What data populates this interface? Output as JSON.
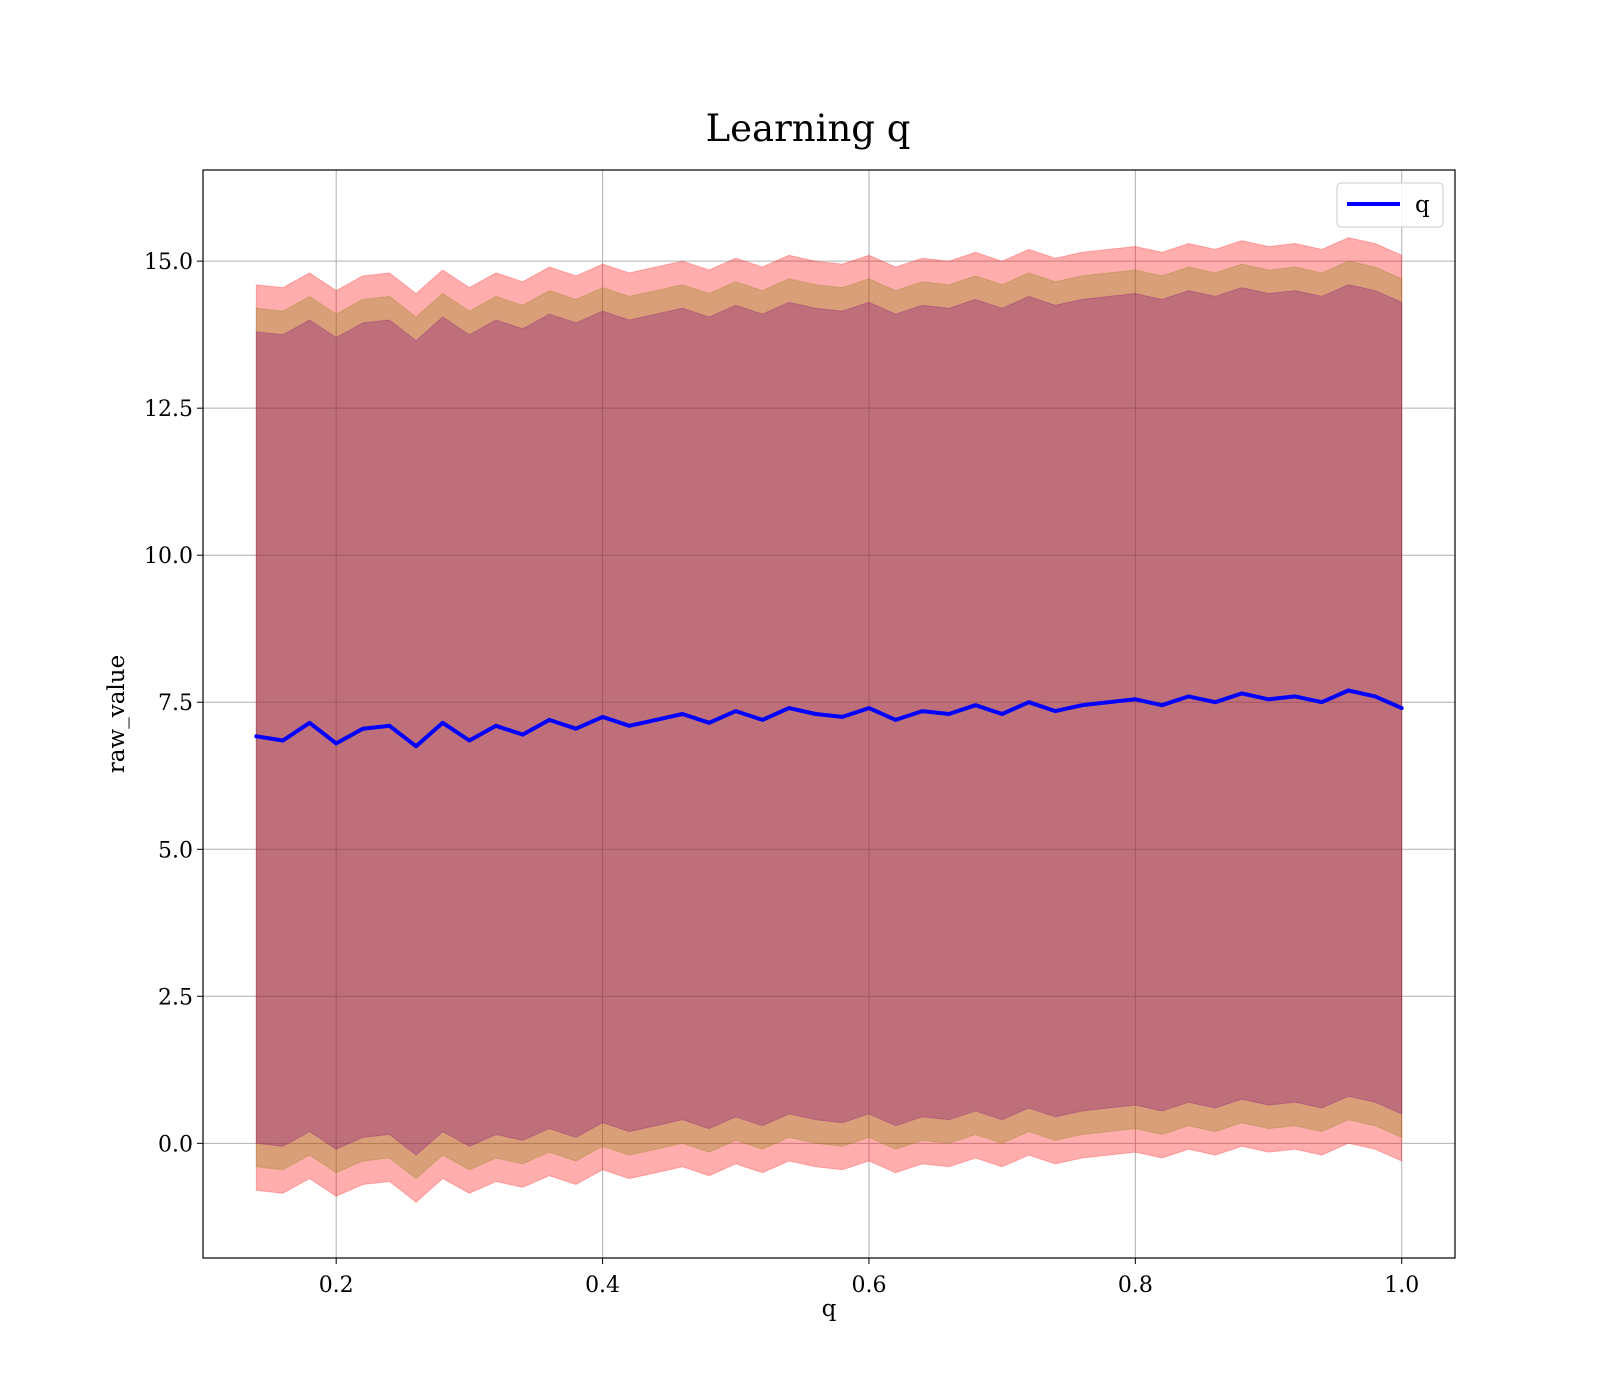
{
  "chart_data": {
    "type": "line",
    "title": "Learning q",
    "xlabel": "q",
    "ylabel": "raw_value",
    "xlim": [
      0.1,
      1.04
    ],
    "ylim": [
      -1.95,
      16.55
    ],
    "xticks": [
      0.2,
      0.4,
      0.6,
      0.8,
      1.0
    ],
    "xtick_labels": [
      "0.2",
      "0.4",
      "0.6",
      "0.8",
      "1.0"
    ],
    "yticks": [
      0.0,
      2.5,
      5.0,
      7.5,
      10.0,
      12.5,
      15.0
    ],
    "ytick_labels": [
      "0.0",
      "2.5",
      "5.0",
      "7.5",
      "10.0",
      "12.5",
      "15.0"
    ],
    "grid": true,
    "legend_position": "top-right",
    "series": [
      {
        "name": "q",
        "color": "#0000ff",
        "x": [
          0.14,
          0.16,
          0.18,
          0.2,
          0.22,
          0.24,
          0.26,
          0.28,
          0.3,
          0.32,
          0.34,
          0.36,
          0.38,
          0.4,
          0.42,
          0.44,
          0.46,
          0.48,
          0.5,
          0.52,
          0.54,
          0.56,
          0.58,
          0.6,
          0.62,
          0.64,
          0.66,
          0.68,
          0.7,
          0.72,
          0.74,
          0.76,
          0.78,
          0.8,
          0.82,
          0.84,
          0.86,
          0.88,
          0.9,
          0.92,
          0.94,
          0.96,
          0.98,
          1.0
        ],
        "y": [
          6.92,
          6.85,
          7.15,
          6.8,
          7.05,
          7.1,
          6.75,
          7.15,
          6.85,
          7.1,
          6.95,
          7.2,
          7.05,
          7.25,
          7.1,
          7.2,
          7.3,
          7.15,
          7.35,
          7.2,
          7.4,
          7.3,
          7.25,
          7.4,
          7.2,
          7.35,
          7.3,
          7.45,
          7.3,
          7.5,
          7.35,
          7.45,
          7.5,
          7.55,
          7.45,
          7.6,
          7.5,
          7.65,
          7.55,
          7.6,
          7.5,
          7.7,
          7.6,
          7.4
        ]
      }
    ],
    "bands": [
      {
        "color": "#ff0000",
        "opacity": 0.32,
        "lower": [
          -0.8,
          -0.85,
          -0.6,
          -0.9,
          -0.7,
          -0.65,
          -1.0,
          -0.6,
          -0.85,
          -0.65,
          -0.75,
          -0.55,
          -0.7,
          -0.45,
          -0.6,
          -0.5,
          -0.4,
          -0.55,
          -0.35,
          -0.5,
          -0.3,
          -0.4,
          -0.45,
          -0.3,
          -0.5,
          -0.35,
          -0.4,
          -0.25,
          -0.4,
          -0.2,
          -0.35,
          -0.25,
          -0.2,
          -0.15,
          -0.25,
          -0.1,
          -0.2,
          -0.05,
          -0.15,
          -0.1,
          -0.2,
          0.0,
          -0.1,
          -0.3
        ],
        "upper": [
          14.6,
          14.55,
          14.8,
          14.5,
          14.75,
          14.8,
          14.45,
          14.85,
          14.55,
          14.8,
          14.65,
          14.9,
          14.75,
          14.95,
          14.8,
          14.9,
          15.0,
          14.85,
          15.05,
          14.9,
          15.1,
          15.0,
          14.95,
          15.1,
          14.9,
          15.05,
          15.0,
          15.15,
          15.0,
          15.2,
          15.05,
          15.15,
          15.2,
          15.25,
          15.15,
          15.3,
          15.2,
          15.35,
          15.25,
          15.3,
          15.2,
          15.4,
          15.3,
          15.1
        ]
      },
      {
        "color": "#808000",
        "opacity": 0.3,
        "lower": [
          -0.4,
          -0.45,
          -0.2,
          -0.5,
          -0.3,
          -0.25,
          -0.6,
          -0.2,
          -0.45,
          -0.25,
          -0.35,
          -0.15,
          -0.3,
          -0.05,
          -0.2,
          -0.1,
          0.0,
          -0.15,
          0.05,
          -0.1,
          0.1,
          0.0,
          -0.05,
          0.1,
          -0.1,
          0.05,
          0.0,
          0.15,
          0.0,
          0.2,
          0.05,
          0.15,
          0.2,
          0.25,
          0.15,
          0.3,
          0.2,
          0.35,
          0.25,
          0.3,
          0.2,
          0.4,
          0.3,
          0.1
        ],
        "upper": [
          14.2,
          14.15,
          14.4,
          14.1,
          14.35,
          14.4,
          14.05,
          14.45,
          14.15,
          14.4,
          14.25,
          14.5,
          14.35,
          14.55,
          14.4,
          14.5,
          14.6,
          14.45,
          14.65,
          14.5,
          14.7,
          14.6,
          14.55,
          14.7,
          14.5,
          14.65,
          14.6,
          14.75,
          14.6,
          14.8,
          14.65,
          14.75,
          14.8,
          14.85,
          14.75,
          14.9,
          14.8,
          14.95,
          14.85,
          14.9,
          14.8,
          15.0,
          14.9,
          14.7
        ]
      },
      {
        "color": "#800080",
        "opacity": 0.3,
        "lower": [
          0.0,
          -0.05,
          0.2,
          -0.1,
          0.1,
          0.15,
          -0.2,
          0.2,
          -0.05,
          0.15,
          0.05,
          0.25,
          0.1,
          0.35,
          0.2,
          0.3,
          0.4,
          0.25,
          0.45,
          0.3,
          0.5,
          0.4,
          0.35,
          0.5,
          0.3,
          0.45,
          0.4,
          0.55,
          0.4,
          0.6,
          0.45,
          0.55,
          0.6,
          0.65,
          0.55,
          0.7,
          0.6,
          0.75,
          0.65,
          0.7,
          0.6,
          0.8,
          0.7,
          0.5
        ],
        "upper": [
          13.8,
          13.75,
          14.0,
          13.7,
          13.95,
          14.0,
          13.65,
          14.05,
          13.75,
          14.0,
          13.85,
          14.1,
          13.95,
          14.15,
          14.0,
          14.1,
          14.2,
          14.05,
          14.25,
          14.1,
          14.3,
          14.2,
          14.15,
          14.3,
          14.1,
          14.25,
          14.2,
          14.35,
          14.2,
          14.4,
          14.25,
          14.35,
          14.4,
          14.45,
          14.35,
          14.5,
          14.4,
          14.55,
          14.45,
          14.5,
          14.4,
          14.6,
          14.5,
          14.3
        ]
      }
    ]
  }
}
